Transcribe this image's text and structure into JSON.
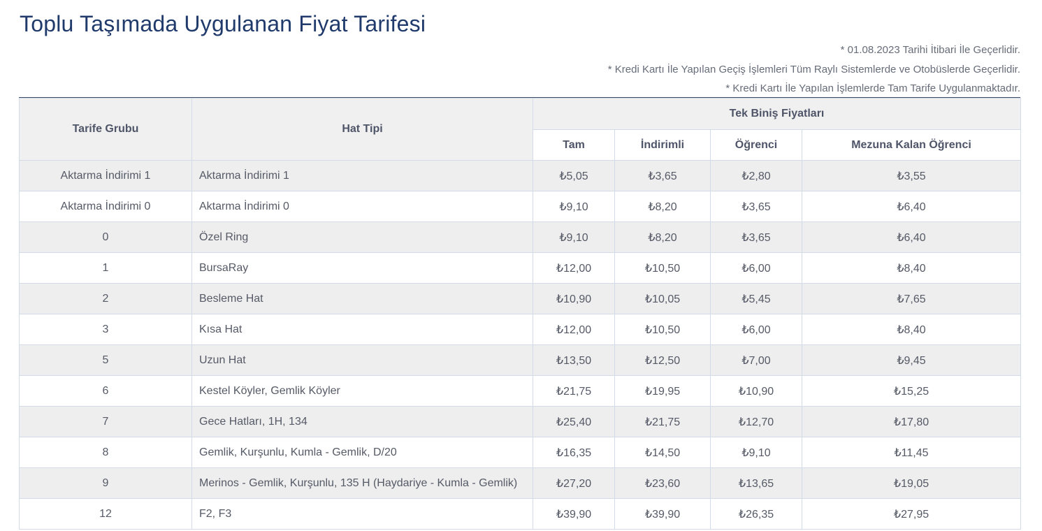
{
  "page": {
    "title": "Toplu Taşımada Uygulanan Fiyat Tarifesi",
    "notes": [
      "* 01.08.2023 Tarihi İtibari İle Geçerlidir.",
      "* Kredi Kartı İle Yapılan Geçiş İşlemleri Tüm Raylı Sistemlerde ve Otobüslerde Geçerlidir.",
      "* Kredi Kartı İle Yapılan İşlemlerde Tam Tarife Uygulanmaktadır."
    ]
  },
  "table": {
    "headers": {
      "tarife_grubu": "Tarife Grubu",
      "hat_tipi": "Hat Tipi",
      "tek_binis": "Tek Biniş Fiyatları",
      "tam": "Tam",
      "indirimli": "İndirimli",
      "ogrenci": "Öğrenci",
      "mezuna": "Mezuna Kalan Öğrenci"
    },
    "rows": [
      [
        "Aktarma İndirimi 1",
        "Aktarma İndirimi 1",
        "₺5,05",
        "₺3,65",
        "₺2,80",
        "₺3,55"
      ],
      [
        "Aktarma İndirimi 0",
        "Aktarma İndirimi 0",
        "₺9,10",
        "₺8,20",
        "₺3,65",
        "₺6,40"
      ],
      [
        "0",
        "Özel Ring",
        "₺9,10",
        "₺8,20",
        "₺3,65",
        "₺6,40"
      ],
      [
        "1",
        "BursaRay",
        "₺12,00",
        "₺10,50",
        "₺6,00",
        "₺8,40"
      ],
      [
        "2",
        "Besleme Hat",
        "₺10,90",
        "₺10,05",
        "₺5,45",
        "₺7,65"
      ],
      [
        "3",
        "Kısa Hat",
        "₺12,00",
        "₺10,50",
        "₺6,00",
        "₺8,40"
      ],
      [
        "5",
        "Uzun Hat",
        "₺13,50",
        "₺12,50",
        "₺7,00",
        "₺9,45"
      ],
      [
        "6",
        "Kestel Köyler, Gemlik Köyler",
        "₺21,75",
        "₺19,95",
        "₺10,90",
        "₺15,25"
      ],
      [
        "7",
        "Gece Hatları, 1H, 134",
        "₺25,40",
        "₺21,75",
        "₺12,70",
        "₺17,80"
      ],
      [
        "8",
        "Gemlik, Kurşunlu, Kumla - Gemlik, D/20",
        "₺16,35",
        "₺14,50",
        "₺9,10",
        "₺11,45"
      ],
      [
        "9",
        "Merinos - Gemlik, Kurşunlu, 135 H (Haydariye - Kumla - Gemlik)",
        "₺27,20",
        "₺23,60",
        "₺13,65",
        "₺19,05"
      ],
      [
        "12",
        "F2, F3",
        "₺39,90",
        "₺39,90",
        "₺26,35",
        "₺27,95"
      ]
    ]
  }
}
